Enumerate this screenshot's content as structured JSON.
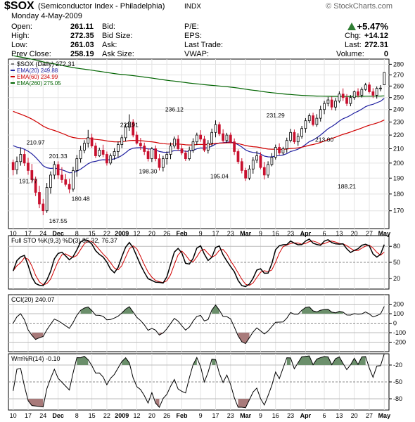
{
  "header": {
    "symbol": "$SOX",
    "name": "(Semiconductor Index - Philadelphia)",
    "exchange": "INDX",
    "copyright": "© StockCharts.com",
    "date": "Monday  4-May-2009",
    "quote_left": [
      {
        "label": "Open:",
        "value": "261.11"
      },
      {
        "label": "High:",
        "value": "272.35"
      },
      {
        "label": "Low:",
        "value": "261.03"
      },
      {
        "label": "Prev Close:",
        "value": "258.19"
      }
    ],
    "quote_mid": [
      "Bid:",
      "Bid Size:",
      "Ask:",
      "Ask Size:"
    ],
    "quote_mid2": [
      "P/E:",
      "EPS:",
      "Last Trade:",
      "VWAP:"
    ],
    "quote_right": [
      {
        "label": "",
        "value": "+5.47%"
      },
      {
        "label": "Chg:",
        "value": "+14.12"
      },
      {
        "label": "Last:",
        "value": "272.31"
      },
      {
        "label": "Volume:",
        "value": "0"
      }
    ],
    "up_color": "#2e7d32"
  },
  "chart_data": [
    {
      "type": "candlestick",
      "title": "$SOX (Daily) 272.31",
      "legend": [
        {
          "name": "EMA(20) 249.88",
          "color": "#2020a0"
        },
        {
          "name": "EMA(60) 234.99",
          "color": "#d00000"
        },
        {
          "name": "EMA(260) 275.05",
          "color": "#006400"
        }
      ],
      "ylim": [
        160,
        285
      ],
      "yticks": [
        170,
        180,
        190,
        200,
        210,
        220,
        230,
        240,
        250,
        260,
        270,
        280
      ],
      "y_scale": "log",
      "x_labels": [
        "10",
        "17",
        "24",
        "Dec",
        "8",
        "15",
        "22",
        "2009",
        "12",
        "20",
        "26",
        "Feb",
        "9",
        "17",
        "23",
        "Mar",
        "9",
        "16",
        "23",
        "Apr",
        "6",
        "13",
        "20",
        "27",
        "May"
      ],
      "bold_labels": [
        "Dec",
        "2009",
        "Feb",
        "Mar",
        "Apr",
        "May"
      ],
      "annotations": [
        {
          "text": "191.77",
          "i": 4,
          "v": 191.77
        },
        {
          "text": "210.97",
          "i": 6,
          "v": 210.97
        },
        {
          "text": "201.33",
          "i": 12,
          "v": 201.33
        },
        {
          "text": "167.55",
          "i": 12,
          "v": 167.55
        },
        {
          "text": "180.48",
          "i": 18,
          "v": 180.48
        },
        {
          "text": "223.91",
          "i": 31,
          "v": 223.91
        },
        {
          "text": "198.30",
          "i": 36,
          "v": 198.3
        },
        {
          "text": "236.12",
          "i": 43,
          "v": 236.12
        },
        {
          "text": "195.04",
          "i": 55,
          "v": 195.04
        },
        {
          "text": "231.29",
          "i": 70,
          "v": 231.29
        },
        {
          "text": "213.00",
          "i": 83,
          "v": 213.0
        },
        {
          "text": "188.21",
          "i": 89,
          "v": 188.21
        }
      ],
      "candles": [
        [
          200.5,
          202.4,
          191.8,
          195.4
        ],
        [
          195.4,
          204.5,
          192.5,
          201.0
        ],
        [
          201.0,
          211.0,
          198.2,
          206.0
        ],
        [
          206.0,
          209.2,
          198.0,
          200.0
        ],
        [
          200.0,
          203.6,
          192.2,
          195.0
        ],
        [
          195.0,
          199.4,
          187.1,
          189.0
        ],
        [
          189.0,
          191.0,
          178.7,
          181.0
        ],
        [
          181.0,
          185.1,
          171.5,
          174.0
        ],
        [
          174.0,
          177.0,
          167.5,
          170.0
        ],
        [
          170.0,
          186.9,
          168.8,
          184.0
        ],
        [
          184.0,
          194.4,
          180.2,
          192.0
        ],
        [
          192.0,
          201.3,
          189.3,
          199.0
        ],
        [
          199.0,
          201.2,
          189.5,
          192.0
        ],
        [
          192.0,
          197.2,
          187.0,
          189.0
        ],
        [
          189.0,
          192.7,
          184.6,
          186.0
        ],
        [
          186.0,
          189.6,
          180.5,
          183.0
        ],
        [
          183.0,
          197.5,
          181.4,
          195.0
        ],
        [
          195.0,
          205.6,
          190.9,
          203.0
        ],
        [
          203.0,
          212.1,
          200.3,
          209.0
        ],
        [
          209.0,
          216.2,
          206.8,
          214.0
        ],
        [
          214.0,
          223.9,
          210.9,
          218.0
        ],
        [
          218.0,
          221.1,
          210.6,
          212.0
        ],
        [
          212.0,
          214.4,
          203.5,
          205.0
        ],
        [
          205.0,
          210.8,
          204.2,
          209.0
        ],
        [
          209.0,
          212.9,
          204.0,
          206.0
        ],
        [
          206.0,
          208.0,
          198.3,
          200.0
        ],
        [
          200.0,
          206.6,
          198.7,
          205.0
        ],
        [
          205.0,
          210.4,
          202.3,
          208.0
        ],
        [
          208.0,
          215.2,
          203.7,
          213.0
        ],
        [
          213.0,
          220.2,
          210.4,
          218.0
        ],
        [
          218.0,
          228.7,
          215.3,
          226.0
        ],
        [
          226.0,
          236.1,
          223.2,
          230.0
        ],
        [
          230.0,
          232.3,
          218.3,
          220.0
        ],
        [
          220.0,
          222.7,
          213.0,
          214.0
        ],
        [
          214.0,
          217.9,
          209.2,
          212.0
        ],
        [
          212.0,
          214.4,
          205.6,
          208.0
        ],
        [
          208.0,
          210.4,
          201.1,
          203.0
        ],
        [
          203.0,
          211.2,
          200.7,
          210.0
        ],
        [
          210.0,
          212.4,
          201.2,
          203.0
        ],
        [
          203.0,
          206.2,
          195.0,
          197.0
        ],
        [
          197.0,
          205.0,
          194.4,
          203.0
        ],
        [
          203.0,
          208.1,
          199.0,
          206.0
        ],
        [
          206.0,
          214.5,
          202.7,
          212.0
        ],
        [
          212.0,
          218.9,
          210.3,
          217.0
        ],
        [
          217.0,
          219.9,
          208.5,
          210.0
        ],
        [
          210.0,
          213.0,
          205.5,
          207.0
        ],
        [
          207.0,
          208.8,
          201.4,
          203.0
        ],
        [
          203.0,
          211.5,
          201.7,
          209.0
        ],
        [
          209.0,
          217.6,
          207.2,
          215.0
        ],
        [
          215.0,
          221.8,
          212.7,
          220.0
        ],
        [
          220.0,
          223.7,
          215.0,
          217.0
        ],
        [
          217.0,
          219.5,
          207.7,
          209.0
        ],
        [
          209.0,
          216.3,
          206.6,
          214.0
        ],
        [
          214.0,
          224.9,
          211.7,
          222.0
        ],
        [
          222.0,
          231.3,
          218.3,
          228.0
        ],
        [
          228.0,
          230.1,
          219.4,
          221.0
        ],
        [
          221.0,
          224.4,
          214.2,
          216.0
        ],
        [
          216.0,
          221.7,
          214.1,
          220.0
        ],
        [
          220.0,
          221.9,
          213.9,
          215.0
        ],
        [
          215.0,
          217.5,
          205.6,
          208.0
        ],
        [
          208.0,
          209.6,
          199.4,
          201.0
        ],
        [
          201.0,
          203.3,
          193.1,
          195.0
        ],
        [
          195.0,
          196.8,
          188.2,
          190.0
        ],
        [
          190.0,
          198.5,
          188.7,
          196.0
        ],
        [
          196.0,
          204.2,
          192.9,
          202.0
        ],
        [
          202.0,
          208.3,
          200.0,
          205.0
        ],
        [
          205.0,
          207.5,
          195.8,
          197.0
        ],
        [
          197.0,
          200.8,
          189.1,
          192.0
        ],
        [
          192.0,
          201.2,
          190.2,
          199.0
        ],
        [
          199.0,
          206.9,
          197.8,
          204.0
        ],
        [
          204.0,
          213.0,
          202.4,
          211.0
        ],
        [
          211.0,
          213.9,
          205.6,
          207.0
        ],
        [
          207.0,
          211.4,
          205.5,
          210.0
        ],
        [
          210.0,
          218.1,
          207.1,
          216.0
        ],
        [
          216.0,
          224.7,
          214.6,
          222.0
        ],
        [
          222.0,
          224.2,
          213.4,
          215.0
        ],
        [
          215.0,
          221.4,
          212.1,
          219.0
        ],
        [
          219.0,
          227.0,
          217.3,
          225.0
        ],
        [
          225.0,
          233.1,
          221.8,
          231.0
        ],
        [
          231.0,
          236.8,
          229.1,
          235.0
        ],
        [
          235.0,
          237.4,
          226.7,
          228.0
        ],
        [
          228.0,
          236.2,
          226.3,
          233.0
        ],
        [
          233.0,
          243.1,
          230.4,
          240.0
        ],
        [
          240.0,
          247.2,
          236.2,
          245.0
        ],
        [
          245.0,
          250.5,
          242.6,
          248.0
        ],
        [
          248.0,
          250.8,
          239.6,
          242.0
        ],
        [
          242.0,
          249.6,
          239.1,
          247.0
        ],
        [
          247.0,
          255.4,
          245.5,
          253.0
        ],
        [
          253.0,
          257.9,
          247.1,
          250.0
        ],
        [
          250.0,
          253.0,
          242.8,
          245.0
        ],
        [
          245.0,
          252.2,
          242.7,
          250.0
        ],
        [
          250.0,
          256.1,
          248.1,
          255.0
        ],
        [
          255.0,
          258.0,
          250.1,
          252.0
        ],
        [
          252.0,
          258.8,
          250.0,
          257.0
        ],
        [
          257.0,
          262.8,
          255.8,
          261.0
        ],
        [
          261.0,
          263.3,
          253.5,
          255.0
        ],
        [
          255.0,
          258.1,
          249.6,
          252.0
        ],
        [
          252.0,
          259.6,
          249.1,
          258.0
        ],
        [
          258.0,
          260.8,
          255.4,
          258.2
        ],
        [
          261.1,
          272.35,
          261.0,
          272.3
        ]
      ]
    },
    {
      "type": "line",
      "title": "Full STO %K(9,3) %D(3) 85.32, 76.37",
      "series": [
        {
          "name": "%K 85.32",
          "color": "#000000"
        },
        {
          "name": "%D 76.37",
          "color": "#d00000"
        }
      ],
      "ylim": [
        0,
        100
      ],
      "yticks": [
        20,
        50,
        80
      ]
    },
    {
      "type": "area",
      "title": "CCI(20) 240.07",
      "series": [
        {
          "name": "CCI(20) 240.07",
          "color": "#000000"
        }
      ],
      "ylim": [
        -300,
        300
      ],
      "yticks": [
        -200,
        -100,
        0,
        100,
        200
      ]
    },
    {
      "type": "area",
      "title": "Wm%R(14) -0.10",
      "series": [
        {
          "name": "Wm%R(14) -0.10",
          "color": "#000000"
        }
      ],
      "ylim": [
        -100,
        0
      ],
      "yticks": [
        -80,
        -50,
        -20
      ]
    }
  ]
}
